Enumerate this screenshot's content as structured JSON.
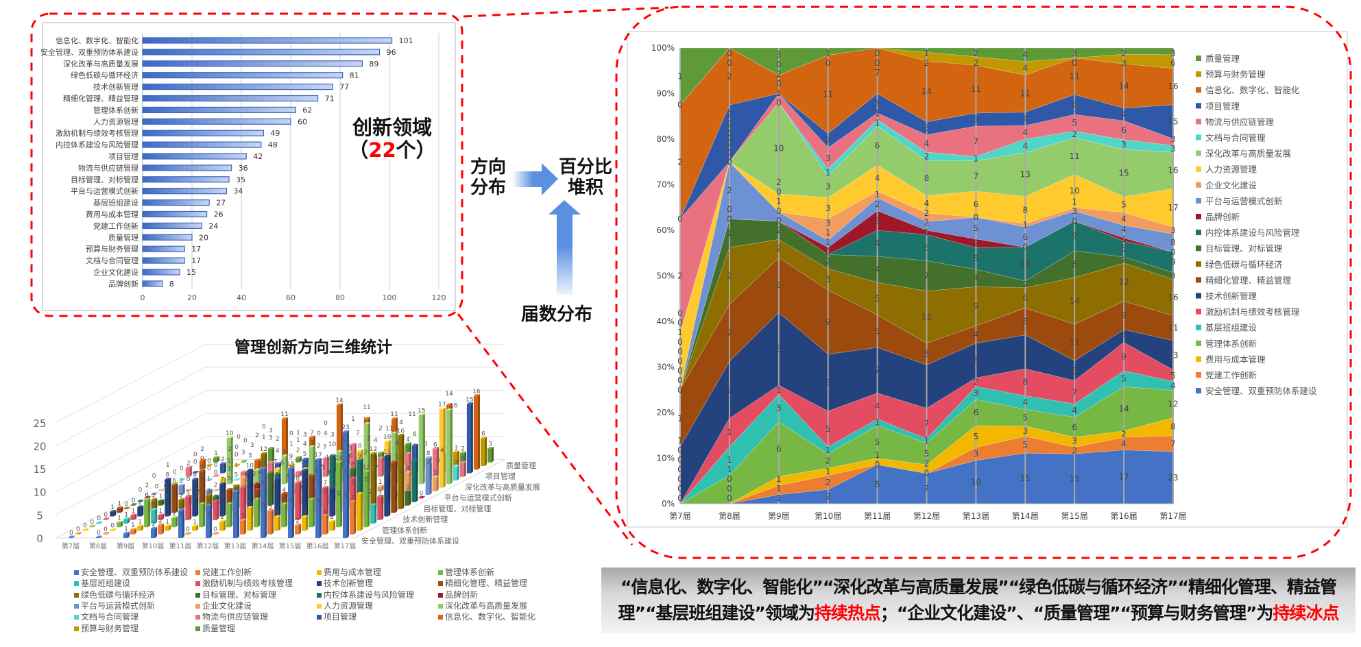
{
  "labels": {
    "innovation_field_title": "创新领域",
    "innovation_field_count_open": "（",
    "innovation_field_count": "22",
    "innovation_field_count_close": "个）",
    "direction_distribution": [
      "方向",
      "分布"
    ],
    "percent_stack": [
      "百分比",
      "堆积"
    ],
    "edition_distribution": "届数分布",
    "chart3d_title": "管理创新方向三维统计"
  },
  "conclusion": {
    "part1": "“信息化、数字化、智能化”“深化改革与高质量发展”“绿色低碳与循环经济”“精细化管理、精益管理”“基层班组建设”领域为",
    "hot": "持续热点",
    "part2": "；“企业文化建设”、“质量管理”“预算与财务管理”为",
    "cold": "持续冰点",
    "hot_color": "#ff0000"
  },
  "series_colors": {
    "安全管理、双重预防体系建设": "#4472C4",
    "党建工作创新": "#ED7D31",
    "费用与成本管理": "#F2B800",
    "管理体系创新": "#76B843",
    "基层班组建设": "#2FC0B2",
    "激励机制与绩效考核管理": "#E44C62",
    "技术创新管理": "#24427E",
    "精细化管理、精益管理": "#9C4A0E",
    "绿色低碳与循环经济": "#8E6E00",
    "目标管理、对标管理": "#43702A",
    "内控体系建设与风险管理": "#1B7369",
    "品牌创新": "#A01729",
    "平台与运营模式创新": "#6E91D4",
    "企业文化建设": "#F29C5E",
    "人力资源管理": "#FFCA2E",
    "深化改革与高质量发展": "#94CB6B",
    "文档与合同管理": "#52D5C9",
    "物流与供应链管理": "#EA717F",
    "项目管理": "#2F59A8",
    "信息化、数字化、智能化": "#D36410",
    "预算与财务管理": "#C19800",
    "质量管理": "#5E9A38"
  },
  "chart_data": [
    {
      "type": "bar",
      "orientation": "horizontal",
      "categories": [
        "信息化、数字化、智能化",
        "安全管理、双重预防体系建设",
        "深化改革与高质量发展",
        "绿色低碳与循环经济",
        "技术创新管理",
        "精细化管理、精益管理",
        "管理体系创新",
        "人力资源管理",
        "激励机制与绩效考核管理",
        "内控体系建设与风险管理",
        "项目管理",
        "物流与供应链管理",
        "目标管理、对标管理",
        "平台与运营模式创新",
        "基层班组建设",
        "费用与成本管理",
        "党建工作创新",
        "质量管理",
        "预算与财务管理",
        "文档与合同管理",
        "企业文化建设",
        "品牌创新"
      ],
      "values": [
        101,
        96,
        89,
        81,
        77,
        71,
        62,
        60,
        49,
        48,
        42,
        36,
        35,
        34,
        27,
        26,
        24,
        20,
        17,
        17,
        15,
        8
      ],
      "xlim": [
        0,
        120
      ],
      "xticks": [
        "0",
        "20",
        "40",
        "60",
        "80",
        "100",
        "120"
      ],
      "grid": true,
      "data_labels": true
    },
    {
      "type": "bar3d",
      "title": "管理创新方向三维统计",
      "categories": [
        "第7届",
        "第8届",
        "第9届",
        "第10届",
        "第11届",
        "第12届",
        "第13届",
        "第14届",
        "第15届",
        "第16届",
        "第17届"
      ],
      "ylim": [
        0,
        25
      ],
      "yticks": [
        "0",
        "5",
        "10",
        "15",
        "20",
        "25"
      ],
      "depth_labels": [
        "安全管理、双重预防体系建设",
        "管理体系创新",
        "技术创新管理",
        "目标管理、对标管理",
        "平台与运营模式创新",
        "深化改革与高质量发展",
        "项目管理",
        "质量管理"
      ],
      "legend": "bottom",
      "legend_order": [
        "安全管理、双重预防体系建设",
        "党建工作创新",
        "费用与成本管理",
        "管理体系创新",
        "基层班组建设",
        "激励机制与绩效考核管理",
        "技术创新管理",
        "精细化管理、精益管理",
        "绿色低碳与循环经济",
        "目标管理、对标管理",
        "内控体系建设与风险管理",
        "品牌创新",
        "平台与运营模式创新",
        "企业文化建设",
        "人力资源管理",
        "深化改革与高质量发展",
        "文档与合同管理",
        "物流与供应链管理",
        "项目管理",
        "信息化、数字化、智能化",
        "预算与财务管理",
        "质量管理"
      ],
      "data_labels": true
    },
    {
      "type": "area",
      "stacking": "percent",
      "categories": [
        "第7届",
        "第8届",
        "第9届",
        "第10届",
        "第11届",
        "第12届",
        "第13届",
        "第14届",
        "第15届",
        "第16届",
        "第17届"
      ],
      "yticks": [
        "0%",
        "10%",
        "20%",
        "30%",
        "40%",
        "50%",
        "60%",
        "70%",
        "80%",
        "90%",
        "100%"
      ],
      "ylim": [
        0,
        100
      ],
      "legend": "right",
      "data_labels": true,
      "series": [
        {
          "name": "安全管理、双重预防体系建设",
          "values": [
            0,
            0,
            1,
            2,
            6,
            7,
            10,
            15,
            15,
            17,
            23
          ]
        },
        {
          "name": "党建工作创新",
          "values": [
            0,
            0,
            1,
            2,
            0,
            0,
            3,
            5,
            2,
            4,
            7
          ]
        },
        {
          "name": "费用与成本管理",
          "values": [
            0,
            0,
            1,
            1,
            1,
            2,
            5,
            3,
            3,
            2,
            8
          ]
        },
        {
          "name": "管理体系创新",
          "values": [
            0,
            1,
            6,
            2,
            5,
            5,
            6,
            5,
            6,
            14,
            12
          ]
        },
        {
          "name": "基层班组建设",
          "values": [
            0,
            1,
            3,
            1,
            1,
            1,
            3,
            4,
            4,
            5,
            4
          ]
        },
        {
          "name": "激励机制与绩效考核管理",
          "values": [
            0,
            1,
            1,
            5,
            4,
            7,
            2,
            8,
            7,
            9,
            5
          ]
        },
        {
          "name": "技术创新管理",
          "values": [
            1,
            2,
            8,
            8,
            7,
            10,
            8,
            10,
            6,
            4,
            13
          ]
        },
        {
          "name": "精细化管理、精益管理",
          "values": [
            1,
            2,
            6,
            9,
            5,
            5,
            4,
            8,
            11,
            9,
            11
          ]
        },
        {
          "name": "绿色低碳与循环经济",
          "values": [
            0,
            2,
            2,
            3,
            5,
            12,
            9,
            6,
            14,
            12,
            16
          ]
        },
        {
          "name": "目标管理、对标管理",
          "values": [
            0,
            1,
            2,
            2,
            4,
            7,
            4,
            2,
            8,
            2,
            3
          ]
        },
        {
          "name": "内控体系建设与风险管理",
          "values": [
            0,
            0,
            0,
            0,
            4,
            6,
            5,
            10,
            9,
            5,
            9
          ]
        },
        {
          "name": "品牌创新",
          "values": [
            0,
            0,
            0,
            1,
            3,
            1,
            2,
            0,
            0,
            1,
            0
          ]
        },
        {
          "name": "平台与运营模式创新",
          "values": [
            0,
            2,
            1,
            1,
            2,
            2,
            5,
            6,
            3,
            4,
            8
          ]
        },
        {
          "name": "企业文化建设",
          "values": [
            0,
            0,
            0,
            3,
            1,
            2,
            0,
            1,
            1,
            4,
            3
          ]
        },
        {
          "name": "人力资源管理",
          "values": [
            1,
            0,
            2,
            3,
            4,
            4,
            6,
            8,
            10,
            5,
            17
          ]
        },
        {
          "name": "深化改革与高质量发展",
          "values": [
            0,
            0,
            10,
            3,
            6,
            8,
            7,
            13,
            11,
            15,
            16
          ]
        },
        {
          "name": "文档与合同管理",
          "values": [
            0,
            0,
            0,
            1,
            1,
            2,
            1,
            4,
            2,
            3,
            3
          ]
        },
        {
          "name": "物流与供应链管理",
          "values": [
            2,
            0,
            1,
            3,
            1,
            4,
            7,
            4,
            5,
            6,
            3
          ]
        },
        {
          "name": "项目管理",
          "values": [
            0,
            2,
            0,
            2,
            3,
            3,
            3,
            4,
            6,
            4,
            15
          ]
        },
        {
          "name": "信息化、数字化、智能化",
          "values": [
            2,
            2,
            2,
            11,
            7,
            14,
            11,
            11,
            11,
            14,
            16
          ]
        },
        {
          "name": "预算与财务管理",
          "values": [
            0,
            0,
            0,
            0,
            0,
            2,
            2,
            4,
            0,
            3,
            6
          ]
        },
        {
          "name": "质量管理",
          "values": [
            1,
            0,
            3,
            1,
            0,
            1,
            2,
            4,
            3,
            2,
            3
          ]
        }
      ]
    }
  ]
}
